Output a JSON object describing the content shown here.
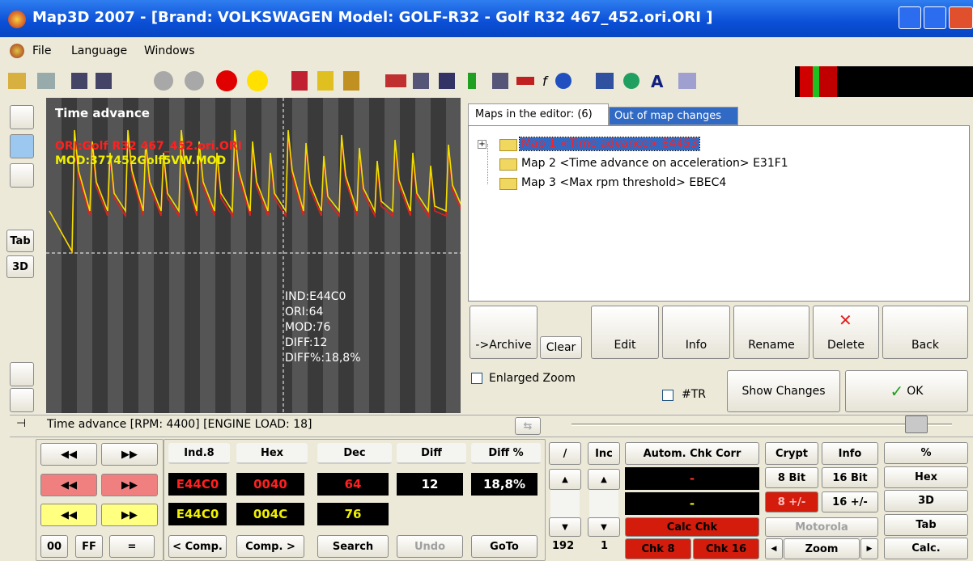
{
  "window": {
    "title": "Map3D 2007 - [Brand: VOLKSWAGEN Model: GOLF-R32  - Golf R32 467_452.ori.ORI ]",
    "menu": [
      "File",
      "Language",
      "Windows"
    ]
  },
  "left_toolbar": [
    "Tab",
    "3D"
  ],
  "graph": {
    "title": "Time advance",
    "ori": "ORI:Golf R32 467_452.ori.ORI",
    "mod": "MOD:377452Golf5VW.MOD",
    "readout": [
      "IND:E44C0",
      "ORI:64",
      "MOD:76",
      "DIFF:12",
      "DIFF%:18,8%"
    ]
  },
  "tabs": [
    "Maps in the editor: (6)",
    "Out of map changes"
  ],
  "tree": [
    "Map 1 <Time advance> E4453",
    "Map 2 <Time advance on acceleration> E31F1",
    "Map 3 <Max rpm threshold> EBEC4"
  ],
  "buttons": [
    "->Archive",
    "Clear",
    "Edit",
    "Info",
    "Rename",
    "Delete",
    "Back"
  ],
  "options": {
    "enlarged_zoom": "Enlarged Zoom",
    "tr": "#TR",
    "show_changes": "Show Changes",
    "ok": "OK"
  },
  "status": "Time advance [RPM: 4400] [ENGINE LOAD: 18]",
  "editor": {
    "headers": [
      "Ind.8",
      "Hex",
      "Dec",
      "Diff",
      "Diff %"
    ],
    "ori_row": [
      "E44C0",
      "0040",
      "64",
      "12",
      "18,8%"
    ],
    "mod_row": [
      "E44C0",
      "004C",
      "76"
    ],
    "row_buttons": [
      "00",
      "FF",
      "=",
      "< Comp.",
      "Comp. >",
      "Search",
      "Undo",
      "GoTo"
    ],
    "step": {
      "slash": "/",
      "inc": "Inc",
      "value1": "192",
      "value2": "1"
    }
  },
  "checksum": {
    "autom": "Autom. Chk Corr",
    "display1": "-",
    "display2": "-",
    "calc": "Calc Chk",
    "chk8": "Chk 8",
    "chk16": "Chk 16",
    "crypt": "Crypt",
    "info": "Info",
    "bit8": "8 Bit",
    "bit16": "16 Bit",
    "pm8": "8 +/-",
    "pm16": "16 +/-",
    "motorola": "Motorola",
    "zoom": "Zoom"
  },
  "side_buttons": [
    "%",
    "Hex",
    "3D",
    "Tab",
    "Calc."
  ]
}
